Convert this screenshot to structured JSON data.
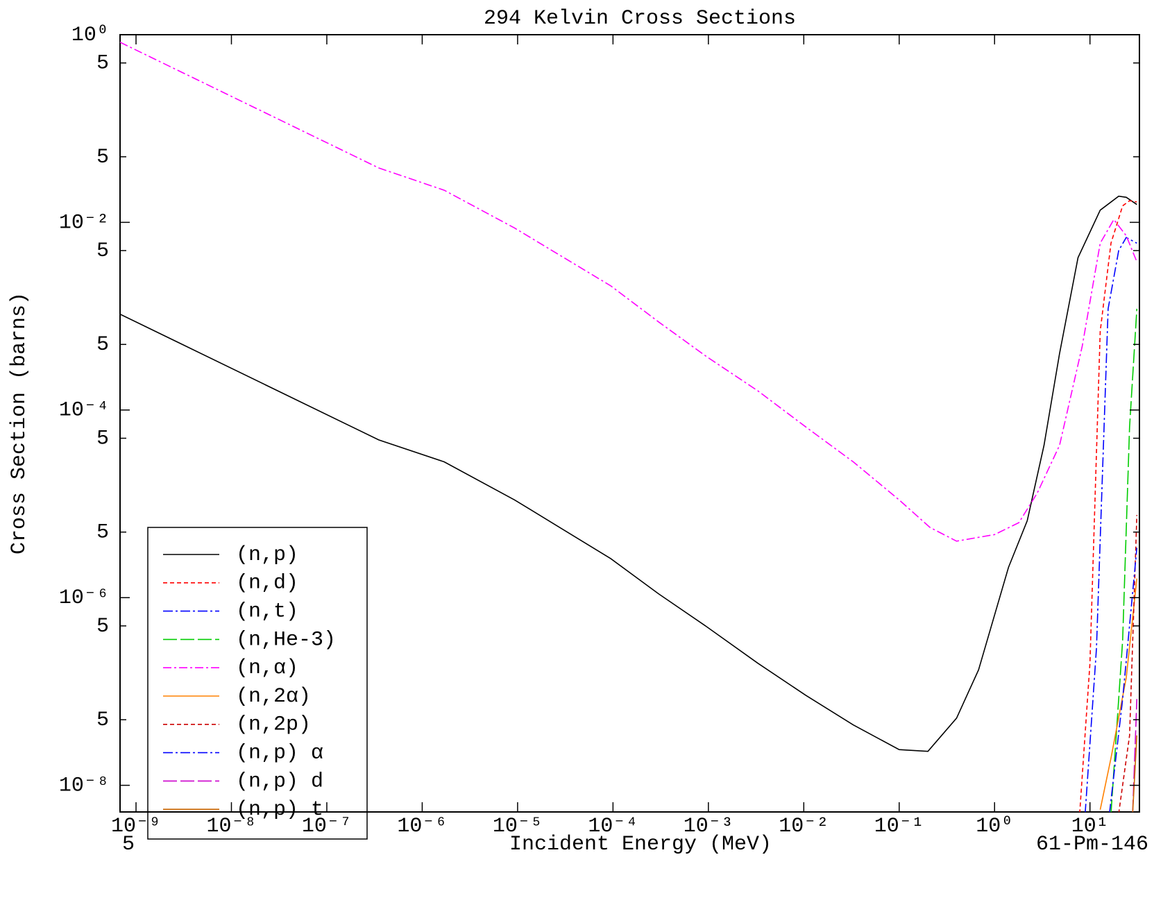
{
  "chart_data": {
    "type": "line",
    "title": "294 Kelvin Cross Sections",
    "x_label": "Incident Energy (MeV)",
    "y_label": "Cross Section (barns)",
    "annotations": [
      "5",
      "61-Pm-146"
    ],
    "x_scale": "log",
    "y_scale": "log",
    "xlim": [
      6.8e-10,
      33
    ],
    "ylim": [
      5.2e-09,
      1
    ],
    "xticks": [
      {
        "value": 1e-09,
        "label": "10⁻⁹"
      },
      {
        "value": 1e-08,
        "label": "10⁻⁸"
      },
      {
        "value": 1e-07,
        "label": "10⁻⁷"
      },
      {
        "value": 1e-06,
        "label": "10⁻⁶"
      },
      {
        "value": 1e-05,
        "label": "10⁻⁵"
      },
      {
        "value": 0.0001,
        "label": "10⁻⁴"
      },
      {
        "value": 0.001,
        "label": "10⁻³"
      },
      {
        "value": 0.01,
        "label": "10⁻²"
      },
      {
        "value": 0.1,
        "label": "10⁻¹"
      },
      {
        "value": 1,
        "label": "10⁰"
      },
      {
        "value": 10,
        "label": "10¹"
      }
    ],
    "yticks": [
      {
        "value": 1,
        "label": "10⁰"
      },
      {
        "value": 0.5,
        "label": "5"
      },
      {
        "value": 0.05,
        "label": "5"
      },
      {
        "value": 0.01,
        "label": "10⁻²"
      },
      {
        "value": 0.005,
        "label": "5"
      },
      {
        "value": 0.0005,
        "label": "5"
      },
      {
        "value": 0.0001,
        "label": "10⁻⁴"
      },
      {
        "value": 5e-05,
        "label": "5"
      },
      {
        "value": 5e-06,
        "label": "5"
      },
      {
        "value": 1e-06,
        "label": "10⁻⁶"
      },
      {
        "value": 5e-07,
        "label": "5"
      },
      {
        "value": 5e-08,
        "label": "5"
      },
      {
        "value": 1e-08,
        "label": "10⁻⁸"
      }
    ],
    "legend": "lower left",
    "series": [
      {
        "name": "(n,p)",
        "color": "#000000",
        "dash": "none",
        "x": [
          6.8e-10,
          3.5e-07,
          1.7e-06,
          9.3e-06,
          9.5e-05,
          0.0003,
          0.00096,
          0.0033,
          0.0105,
          0.033,
          0.1,
          0.2,
          0.4,
          0.68,
          1.4,
          2.2,
          3.3,
          4.8,
          7.5,
          12.8,
          20,
          24,
          31
        ],
        "values": [
          0.00105,
          4.8e-05,
          2.8e-05,
          1.1e-05,
          2.6e-06,
          1.1e-06,
          4.9e-07,
          2e-07,
          9.1e-08,
          4.4e-08,
          2.4e-08,
          2.3e-08,
          5.2e-08,
          1.7e-07,
          2.1e-06,
          6.6e-06,
          4.2e-05,
          0.0004,
          0.0042,
          0.0135,
          0.019,
          0.0185,
          0.0155
        ]
      },
      {
        "name": "(n,d)",
        "color": "#ff0000",
        "dash": "6,4",
        "x": [
          7.8,
          10,
          12.8,
          16.6,
          22,
          26,
          31
        ],
        "values": [
          5e-09,
          2e-07,
          0.00069,
          0.006,
          0.015,
          0.017,
          0.0165
        ]
      },
      {
        "name": "(n,t)",
        "color": "#0000ff",
        "dash": "14,4,3,4",
        "x": [
          8.9,
          11.7,
          15.5,
          20,
          24,
          31
        ],
        "values": [
          5e-09,
          2.9e-07,
          0.0012,
          0.005,
          0.0069,
          0.006
        ]
      },
      {
        "name": "(n,He-3)",
        "color": "#00cc00",
        "dash": "20,5",
        "x": [
          16.6,
          22,
          26,
          31
        ],
        "values": [
          5e-09,
          3.5e-07,
          6.6e-05,
          0.0012
        ]
      },
      {
        "name": "(n,α)",
        "color": "#ff00ff",
        "dash": "12,4,3,4",
        "x": [
          6.8e-10,
          3.5e-07,
          1.7e-06,
          9.3e-06,
          9.5e-05,
          0.0003,
          0.00096,
          0.0033,
          0.0105,
          0.033,
          0.1,
          0.21,
          0.4,
          1.0,
          1.8,
          2.8,
          4.8,
          8.3,
          12.8,
          17.8,
          24,
          31
        ],
        "values": [
          0.83,
          0.038,
          0.022,
          0.0087,
          0.0021,
          0.00087,
          0.00037,
          0.00016,
          6.6e-05,
          2.8e-05,
          1.1e-05,
          5.6e-06,
          4e-06,
          4.7e-06,
          6.3e-06,
          1.3e-05,
          4.2e-05,
          0.00048,
          0.006,
          0.0107,
          0.0072,
          0.0038
        ]
      },
      {
        "name": "(n,2α)",
        "color": "#ff8000",
        "dash": "none",
        "x": [
          12.8,
          16.6,
          24,
          31
        ],
        "values": [
          5.5e-09,
          1.95e-08,
          1.4e-07,
          1.6e-06
        ]
      },
      {
        "name": "(n,2p)",
        "color": "#cc0000",
        "dash": "6,4",
        "x": [
          20,
          26,
          31
        ],
        "values": [
          5e-09,
          3.4e-08,
          7.6e-06
        ]
      },
      {
        "name": "(n,p) α",
        "color": "#0000ff",
        "dash": "14,4,3,4",
        "x": [
          16,
          22,
          31
        ],
        "values": [
          5e-09,
          8.3e-08,
          3.4e-06
        ]
      },
      {
        "name": "(n,p) d",
        "color": "#cc00cc",
        "dash": "20,5",
        "x": [
          28,
          31
        ],
        "values": [
          5e-09,
          8.3e-08
        ]
      },
      {
        "name": "(n,p) t",
        "color": "#cc6600",
        "dash": "none",
        "x": [
          28,
          31
        ],
        "values": [
          5e-09,
          3.4e-08
        ]
      }
    ]
  }
}
